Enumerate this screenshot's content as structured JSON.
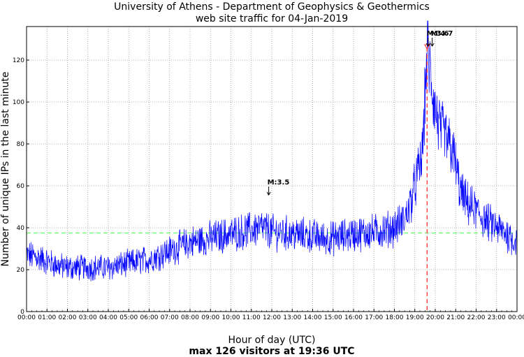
{
  "chart_data": {
    "type": "line",
    "title": "University of Athens - Department of Geophysics & Geothermics",
    "subtitle": "web site traffic for 04-Jan-2019",
    "xlabel": "Hour of day (UTC)",
    "ylabel": "Number of unique IPs in the last minute",
    "footer": "max 126 visitors at 19:36 UTC",
    "xlim": [
      0,
      24
    ],
    "ylim": [
      0,
      136
    ],
    "x_tick_labels": [
      "00:00",
      "01:00",
      "02:00",
      "03:00",
      "04:00",
      "05:00",
      "06:00",
      "07:00",
      "08:00",
      "09:00",
      "10:00",
      "11:00",
      "12:00",
      "13:00",
      "14:00",
      "15:00",
      "16:00",
      "17:00",
      "18:00",
      "19:00",
      "20:00",
      "21:00",
      "22:00",
      "23:00",
      "00:00"
    ],
    "y_ticks": [
      0,
      20,
      40,
      60,
      80,
      100,
      120
    ],
    "grid": true,
    "mean_line": 37.5,
    "max_marker": {
      "x": 19.6,
      "y": 126
    },
    "annotations": [
      {
        "label": "M:3.5",
        "x": 11.85,
        "y": 55
      },
      {
        "label": "M:3.6",
        "x": 19.65,
        "y": 126
      },
      {
        "label": "M:4.7",
        "x": 19.85,
        "y": 126
      }
    ],
    "series_control_points": [
      [
        0.0,
        27
      ],
      [
        0.5,
        26
      ],
      [
        1.0,
        24
      ],
      [
        1.5,
        22
      ],
      [
        2.0,
        21
      ],
      [
        3.0,
        21
      ],
      [
        4.0,
        21
      ],
      [
        4.5,
        22
      ],
      [
        5.0,
        23
      ],
      [
        5.5,
        24
      ],
      [
        6.0,
        25
      ],
      [
        6.5,
        27
      ],
      [
        7.0,
        29
      ],
      [
        7.5,
        31
      ],
      [
        8.0,
        33
      ],
      [
        9.0,
        35
      ],
      [
        10.0,
        37
      ],
      [
        10.5,
        38
      ],
      [
        11.0,
        39
      ],
      [
        11.5,
        40
      ],
      [
        12.0,
        38
      ],
      [
        13.0,
        37
      ],
      [
        14.0,
        36
      ],
      [
        14.5,
        35
      ],
      [
        15.0,
        35
      ],
      [
        15.5,
        36
      ],
      [
        16.0,
        37
      ],
      [
        17.0,
        38
      ],
      [
        17.5,
        39
      ],
      [
        18.0,
        40
      ],
      [
        18.5,
        44
      ],
      [
        18.8,
        52
      ],
      [
        19.0,
        60
      ],
      [
        19.2,
        68
      ],
      [
        19.35,
        74
      ],
      [
        19.45,
        90
      ],
      [
        19.55,
        115
      ],
      [
        19.6,
        124
      ],
      [
        19.7,
        118
      ],
      [
        19.8,
        110
      ],
      [
        19.9,
        102
      ],
      [
        20.0,
        96
      ],
      [
        20.2,
        88
      ],
      [
        20.5,
        83
      ],
      [
        20.8,
        78
      ],
      [
        21.0,
        70
      ],
      [
        21.2,
        58
      ],
      [
        21.5,
        52
      ],
      [
        22.0,
        48
      ],
      [
        22.5,
        43
      ],
      [
        23.0,
        40
      ],
      [
        23.5,
        37
      ],
      [
        24.0,
        33
      ]
    ],
    "line_color": "#0000ff",
    "mean_color": "#66ff66",
    "max_color": "#ff3333"
  }
}
